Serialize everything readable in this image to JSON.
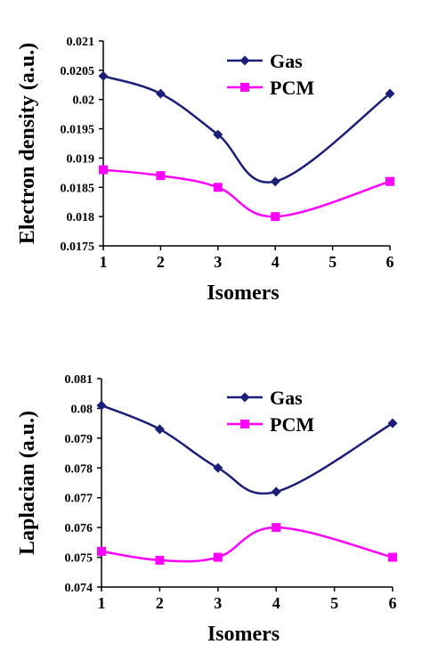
{
  "chart_data": [
    {
      "type": "line",
      "x": [
        1,
        2,
        3,
        4,
        6
      ],
      "xticks": [
        "1",
        "2",
        "3",
        "4",
        "5",
        "6"
      ],
      "xlim": [
        1,
        6
      ],
      "ylim": [
        0.0175,
        0.021
      ],
      "yticks": [
        "0.0175",
        "0.018",
        "0.0185",
        "0.019",
        "0.0195",
        "0.02",
        "0.0205",
        "0.021"
      ],
      "xlabel": "Isomers",
      "ylabel": "Electron density (a.u.)",
      "legend": "top-right",
      "grid": false,
      "series": [
        {
          "name": "Gas",
          "values": [
            0.0204,
            0.0201,
            0.0194,
            0.0186,
            0.0201
          ],
          "color": "#1b1f7a",
          "marker": "diamond"
        },
        {
          "name": "PCM",
          "values": [
            0.0188,
            0.0187,
            0.0185,
            0.018,
            0.0186
          ],
          "color": "#ff00ff",
          "marker": "square"
        }
      ]
    },
    {
      "type": "line",
      "x": [
        1,
        2,
        3,
        4,
        6
      ],
      "xticks": [
        "1",
        "2",
        "3",
        "4",
        "5",
        "6"
      ],
      "xlim": [
        1,
        6
      ],
      "ylim": [
        0.074,
        0.081
      ],
      "yticks": [
        "0.074",
        "0.075",
        "0.076",
        "0.077",
        "0.078",
        "0.079",
        "0.08",
        "0.081"
      ],
      "xlabel": "Isomers",
      "ylabel": "Laplacian (a.u.)",
      "legend": "top-right",
      "grid": false,
      "series": [
        {
          "name": "Gas",
          "values": [
            0.0801,
            0.0793,
            0.078,
            0.0772,
            0.0795
          ],
          "color": "#1b1f7a",
          "marker": "diamond"
        },
        {
          "name": "PCM",
          "values": [
            0.0752,
            0.0749,
            0.075,
            0.076,
            0.075
          ],
          "color": "#ff00ff",
          "marker": "square"
        }
      ]
    }
  ]
}
